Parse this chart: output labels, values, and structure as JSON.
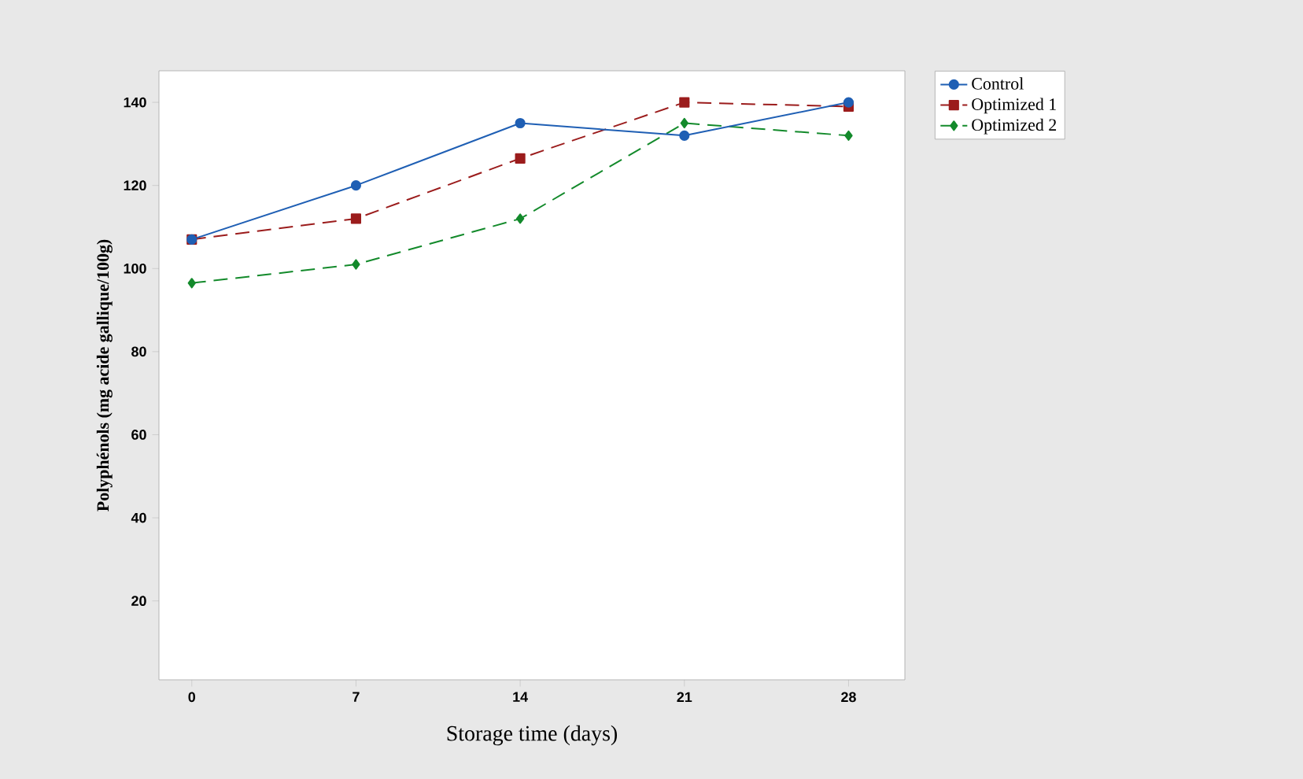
{
  "chart_data": {
    "type": "line",
    "xlabel": "Storage time (days)",
    "ylabel": "Polyphénols (mg acide gallique/100g)",
    "x": [
      0,
      7,
      14,
      21,
      28
    ],
    "series": [
      {
        "name": "Control",
        "color": "#1f5fb4",
        "marker": "circle",
        "line_style": "solid",
        "values": [
          107,
          120,
          135,
          132,
          140
        ]
      },
      {
        "name": "Optimized 1",
        "color": "#9b1c1c",
        "marker": "square",
        "line_style": "dashed",
        "values": [
          107,
          112,
          126.5,
          140,
          139
        ]
      },
      {
        "name": "Optimized 2",
        "color": "#138a2b",
        "marker": "diamond",
        "line_style": "dashed",
        "values": [
          96.5,
          101,
          112,
          135,
          132
        ]
      }
    ],
    "xlim": [
      -1.4,
      30.4
    ],
    "ylim": [
      1,
      147.6
    ],
    "xticks": [
      0,
      7,
      14,
      21,
      28
    ],
    "yticks": [
      20,
      40,
      60,
      80,
      100,
      120,
      140
    ],
    "grid": false,
    "legend": "top right"
  }
}
